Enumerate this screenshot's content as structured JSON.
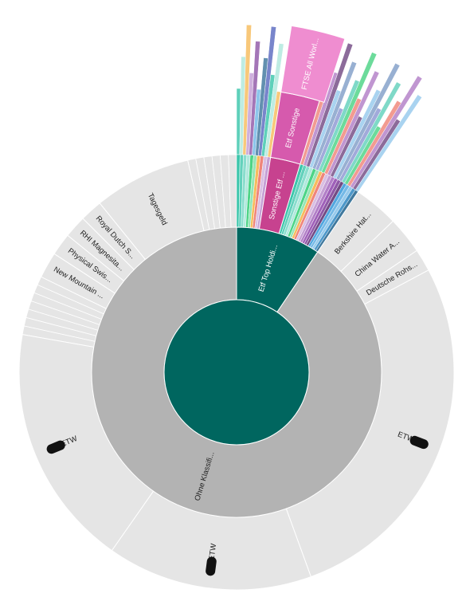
{
  "chart_data": {
    "type": "sunburst",
    "colors": {
      "root": "#00665f",
      "group_gray": "#b3b3b3",
      "leaf_light": "#e5e5e5",
      "etf_top": "#00665f",
      "sonstige_dark": "#c7428f",
      "etf_sonstige": "#d65aad",
      "ftse": "#ef8dd0",
      "stroke": "#ffffff"
    },
    "root": {
      "label": "",
      "value": 100
    },
    "ring1": [
      {
        "label": "Etf Top Holdi...",
        "start": 0,
        "end": 34,
        "color_key": "etf_top"
      },
      {
        "label": "Ohne Klassifi...",
        "start": 34,
        "end": 360,
        "color_key": "group_gray"
      }
    ],
    "ring2": [
      {
        "label": "Sonstige Etf ...",
        "start": 9,
        "end": 17,
        "color_key": "sonstige_dark"
      },
      {
        "label": "Berkshire Hat...",
        "start": 34,
        "end": 46
      },
      {
        "label": "China Water A...",
        "start": 46,
        "end": 56
      },
      {
        "label": "Deutsche Rohs...",
        "start": 56,
        "end": 62
      },
      {
        "label": "ETW",
        "start": 62,
        "end": 160
      },
      {
        "label": "ETW",
        "start": 160,
        "end": 215
      },
      {
        "label": "ETW",
        "start": 215,
        "end": 280
      },
      {
        "label": "New Mountain ...",
        "start": 296,
        "end": 303
      },
      {
        "label": "Physical Swis...",
        "start": 303,
        "end": 309
      },
      {
        "label": "RHI Magnesita...",
        "start": 309,
        "end": 315
      },
      {
        "label": "Royal Dutch S...",
        "start": 315,
        "end": 321
      },
      {
        "label": "Tagesgeld",
        "start": 321,
        "end": 347
      }
    ],
    "ring3": [
      {
        "label": "Etf Sonstige",
        "start": 9,
        "end": 17,
        "color_key": "etf_sonstige"
      }
    ],
    "ring4": [
      {
        "label": "FTSE All Worl...",
        "start": 9,
        "end": 18,
        "color_key": "ftse"
      }
    ],
    "outer_slivers": {
      "colors": [
        "#1abc9c",
        "#48c9b0",
        "#76d7c4",
        "#a3e4d7",
        "#2ecc71",
        "#82e0aa",
        "#f5b041",
        "#ec7063",
        "#d2b4de",
        "#bb8fce",
        "#a569bd",
        "#8e44ad",
        "#7d3c98",
        "#5b2c6f",
        "#3498db",
        "#5dade2",
        "#85c1e9",
        "#2e86c1",
        "#1f618d",
        "#6c8ebf",
        "#9aa9e0",
        "#3f51b5",
        "#7986cb",
        "#c5cae9"
      ]
    }
  }
}
